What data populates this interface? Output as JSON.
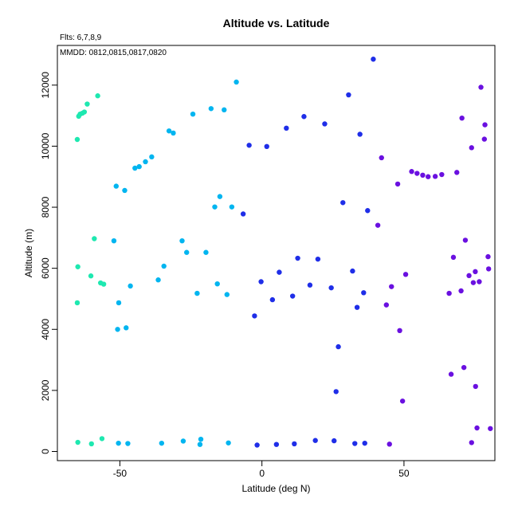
{
  "chart_data": {
    "type": "scatter",
    "title": "Altitude vs. Latitude",
    "subtitle": "Flts: 6,7,8,9",
    "annotation": "MMDD: 0812,0815,0817,0820",
    "xlabel": "Latitude (deg N)",
    "ylabel": "Altitude (m)",
    "xlim": [
      -72,
      82
    ],
    "ylim": [
      -300,
      13300
    ],
    "xticks": [
      -50,
      0,
      50
    ],
    "yticks": [
      0,
      2000,
      4000,
      6000,
      8000,
      10000,
      12000
    ],
    "grid": false,
    "legend": "none",
    "colors": {
      "flight6": "#1ee8b0",
      "flight7": "#00b5f0",
      "flight8": "#1f2ee8",
      "flight9": "#6a10e0"
    },
    "series": [
      {
        "color_key": "flight6",
        "points": [
          [
            -65,
            10220
          ],
          [
            -64.5,
            10980
          ],
          [
            -64,
            11050
          ],
          [
            -63.2,
            11080
          ],
          [
            -62.5,
            11120
          ],
          [
            -61.5,
            11380
          ],
          [
            -57.8,
            11650
          ],
          [
            -64.8,
            6050
          ],
          [
            -60.2,
            5750
          ],
          [
            -59,
            6970
          ],
          [
            -56.8,
            5520
          ],
          [
            -55.7,
            5480
          ],
          [
            -65,
            4870
          ],
          [
            -64.8,
            300
          ],
          [
            -60,
            250
          ],
          [
            -56.3,
            420
          ]
        ]
      },
      {
        "color_key": "flight7",
        "points": [
          [
            -51.3,
            8690
          ],
          [
            -48.3,
            8550
          ],
          [
            -44.7,
            9280
          ],
          [
            -43.2,
            9330
          ],
          [
            -41,
            9490
          ],
          [
            -38.8,
            9650
          ],
          [
            -32.7,
            10500
          ],
          [
            -31.2,
            10430
          ],
          [
            -24.3,
            11050
          ],
          [
            -17.9,
            11230
          ],
          [
            -13.3,
            11190
          ],
          [
            -9,
            12100
          ],
          [
            -16.6,
            8010
          ],
          [
            -14.8,
            8350
          ],
          [
            -10.6,
            8010
          ],
          [
            -52.1,
            6900
          ],
          [
            -46.3,
            5420
          ],
          [
            -36.5,
            5620
          ],
          [
            -34.5,
            6070
          ],
          [
            -28.1,
            6900
          ],
          [
            -26.5,
            6520
          ],
          [
            -22.8,
            5180
          ],
          [
            -19.7,
            6520
          ],
          [
            -15.7,
            5490
          ],
          [
            -12.3,
            5140
          ],
          [
            -50.4,
            4870
          ],
          [
            -50.8,
            4000
          ],
          [
            -47.8,
            4050
          ],
          [
            -50.5,
            270
          ],
          [
            -47.2,
            260
          ],
          [
            -35.3,
            270
          ],
          [
            -27.7,
            340
          ],
          [
            -21.5,
            400
          ],
          [
            -21.8,
            230
          ],
          [
            -11.8,
            280
          ]
        ]
      },
      {
        "color_key": "flight8",
        "points": [
          [
            -6.6,
            7780
          ],
          [
            -4.5,
            10030
          ],
          [
            1.7,
            9990
          ],
          [
            8.6,
            10590
          ],
          [
            14.8,
            10970
          ],
          [
            22.1,
            10730
          ],
          [
            30.5,
            11680
          ],
          [
            34.5,
            10390
          ],
          [
            39.2,
            12850
          ],
          [
            28.5,
            8150
          ],
          [
            37.2,
            7890
          ],
          [
            -2.6,
            4440
          ],
          [
            -0.3,
            5560
          ],
          [
            3.7,
            4970
          ],
          [
            6.1,
            5870
          ],
          [
            10.8,
            5090
          ],
          [
            12.6,
            6330
          ],
          [
            16.9,
            5450
          ],
          [
            19.7,
            6300
          ],
          [
            24.4,
            5360
          ],
          [
            31.9,
            5910
          ],
          [
            33.5,
            4720
          ],
          [
            35.8,
            5200
          ],
          [
            26.9,
            3430
          ],
          [
            26.1,
            1960
          ],
          [
            -1.7,
            210
          ],
          [
            5.1,
            230
          ],
          [
            11.4,
            250
          ],
          [
            18.8,
            360
          ],
          [
            25.4,
            350
          ],
          [
            32.7,
            260
          ],
          [
            36.2,
            270
          ]
        ]
      },
      {
        "color_key": "flight9",
        "points": [
          [
            42.1,
            9620
          ],
          [
            47.8,
            8760
          ],
          [
            52.7,
            9170
          ],
          [
            54.6,
            9110
          ],
          [
            56.6,
            9050
          ],
          [
            58.5,
            9000
          ],
          [
            61,
            9010
          ],
          [
            63.3,
            9070
          ],
          [
            68.6,
            9140
          ],
          [
            70.4,
            10920
          ],
          [
            73.8,
            9950
          ],
          [
            77.1,
            11930
          ],
          [
            78.5,
            10700
          ],
          [
            78.3,
            10230
          ],
          [
            40.8,
            7410
          ],
          [
            43.8,
            4800
          ],
          [
            45.6,
            5400
          ],
          [
            48.5,
            3960
          ],
          [
            50.6,
            5800
          ],
          [
            65.9,
            5180
          ],
          [
            67.4,
            6360
          ],
          [
            70.1,
            5260
          ],
          [
            71.6,
            6920
          ],
          [
            72.9,
            5760
          ],
          [
            74.4,
            5530
          ],
          [
            75.1,
            5890
          ],
          [
            76.5,
            5560
          ],
          [
            79.8,
            5980
          ],
          [
            79.6,
            6380
          ],
          [
            49.5,
            1650
          ],
          [
            66.6,
            2530
          ],
          [
            71.1,
            2750
          ],
          [
            75.2,
            2130
          ],
          [
            44.9,
            240
          ],
          [
            73.8,
            290
          ],
          [
            75.7,
            770
          ],
          [
            80.4,
            750
          ]
        ]
      }
    ]
  }
}
